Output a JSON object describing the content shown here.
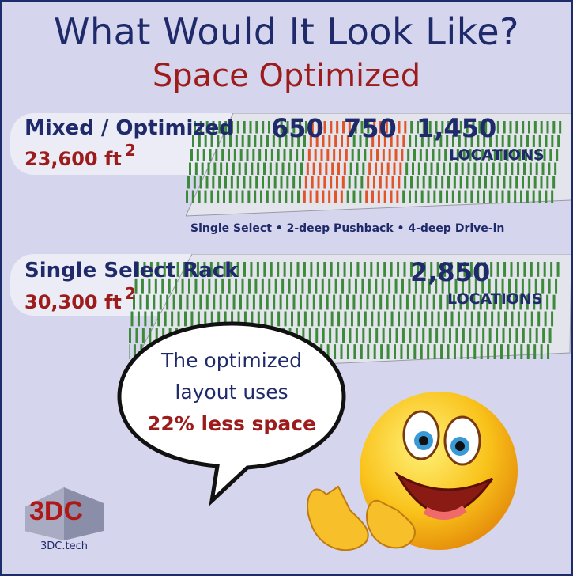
{
  "header": {
    "title": "What Would It Look Like?",
    "subtitle": "Space Optimized"
  },
  "mixed": {
    "label": "Mixed / Optimized",
    "area": "23,600 ft",
    "area_exp": "2",
    "counts": [
      "650",
      "750",
      "1,450"
    ],
    "locations_label": "LOCATIONS",
    "legend": "Single Select • 2-deep Pushback • 4-deep Drive-in"
  },
  "single": {
    "label": "Single Select Rack",
    "area": "30,300 ft",
    "area_exp": "2",
    "count": "2,850",
    "locations_label": "LOCATIONS"
  },
  "bubble": {
    "line1": "The optimized",
    "line2": "layout uses",
    "line3": "22% less space"
  },
  "logo": {
    "mark": "3DC",
    "url": "3DC.tech"
  },
  "colors": {
    "navy": "#1f2a6a",
    "red": "#9c1c1c",
    "rack_green": "#3c8a3a",
    "rack_orange": "#e0562a",
    "background": "#d6d5ee"
  }
}
